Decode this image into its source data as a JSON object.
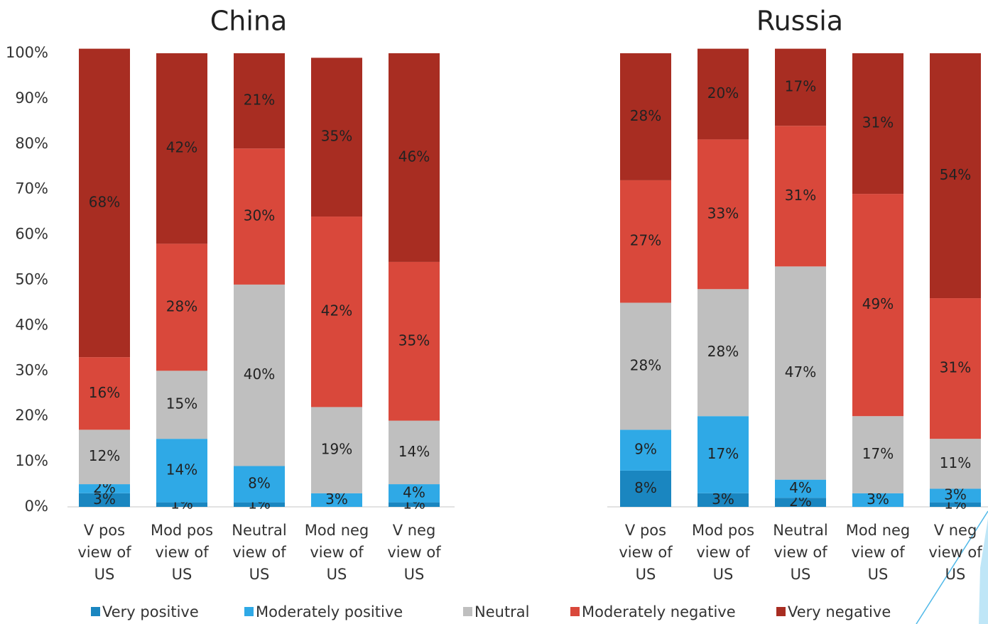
{
  "chart_data": [
    {
      "type": "stacked_bar",
      "title": "China",
      "categories": [
        "V pos view of US",
        "Mod pos view of US",
        "Neutral view of US",
        "Mod neg view of US",
        "V neg view of US"
      ],
      "ylim": [
        0,
        100
      ],
      "yticks": [
        {
          "value": 0,
          "label": "0%"
        },
        {
          "value": 10,
          "label": "10%"
        },
        {
          "value": 20,
          "label": "20%"
        },
        {
          "value": 30,
          "label": "30%"
        },
        {
          "value": 40,
          "label": "40%"
        },
        {
          "value": 50,
          "label": "50%"
        },
        {
          "value": 60,
          "label": "60%"
        },
        {
          "value": 70,
          "label": "70%"
        },
        {
          "value": 80,
          "label": "80%"
        },
        {
          "value": 90,
          "label": "90%"
        },
        {
          "value": 100,
          "label": "100%"
        }
      ],
      "series": [
        {
          "name": "Very positive",
          "color": "#1a86c0",
          "values": [
            3,
            1,
            1,
            null,
            1
          ],
          "value_labels": [
            "3%",
            "1%",
            "1%",
            null,
            "1%"
          ]
        },
        {
          "name": "Moderately positive",
          "color": "#2fa9e6",
          "values": [
            2,
            14,
            8,
            3,
            4
          ],
          "value_labels": [
            "2%",
            "14%",
            "8%",
            "3%",
            "4%"
          ]
        },
        {
          "name": "Neutral",
          "color": "#bfbfbf",
          "values": [
            12,
            15,
            40,
            19,
            14
          ],
          "value_labels": [
            "12%",
            "15%",
            "40%",
            "19%",
            "14%"
          ]
        },
        {
          "name": "Moderately negative",
          "color": "#d9483b",
          "values": [
            16,
            28,
            30,
            42,
            35
          ],
          "value_labels": [
            "16%",
            "28%",
            "30%",
            "42%",
            "35%"
          ]
        },
        {
          "name": "Very negative",
          "color": "#a82d22",
          "values": [
            68,
            42,
            21,
            35,
            46
          ],
          "value_labels": [
            "68%",
            "42%",
            "21%",
            "35%",
            "46%"
          ]
        }
      ]
    },
    {
      "type": "stacked_bar",
      "title": "Russia",
      "categories": [
        "V pos view of US",
        "Mod pos view of US",
        "Neutral view of US",
        "Mod neg view of US",
        "V neg view of US"
      ],
      "ylim": [
        0,
        100
      ],
      "series": [
        {
          "color": "#1a86c0",
          "values": [
            8,
            3,
            2,
            null,
            1
          ],
          "value_labels": [
            "8%",
            "3%",
            "2%",
            null,
            "1%"
          ]
        },
        {
          "color": "#2fa9e6",
          "values": [
            9,
            17,
            4,
            3,
            3
          ],
          "value_labels": [
            "9%",
            "17%",
            "4%",
            "3%",
            "3%"
          ]
        },
        {
          "color": "#bfbfbf",
          "values": [
            28,
            28,
            47,
            17,
            11
          ],
          "value_labels": [
            "28%",
            "28%",
            "47%",
            "17%",
            "11%"
          ]
        },
        {
          "color": "#d9483b",
          "values": [
            27,
            33,
            31,
            49,
            31
          ],
          "value_labels": [
            "27%",
            "33%",
            "31%",
            "49%",
            "31%"
          ]
        },
        {
          "color": "#a82d22",
          "values": [
            28,
            20,
            17,
            31,
            54
          ],
          "value_labels": [
            "28%",
            "20%",
            "17%",
            "31%",
            "54%"
          ]
        }
      ]
    }
  ]
}
